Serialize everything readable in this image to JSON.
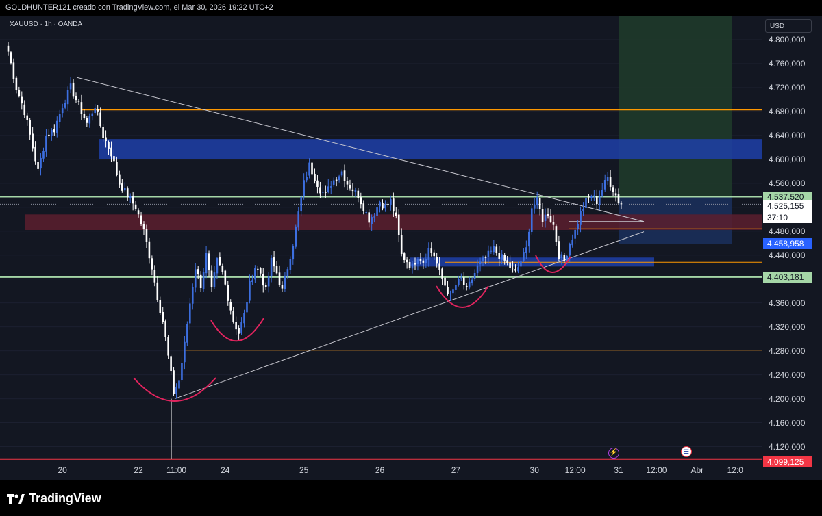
{
  "header": {
    "caption": "GOLDHUNTER121 creado con TradingView.com, el Mar 30, 2026 19:22 UTC+2"
  },
  "symbol_line": "XAUUSD · 1h · OANDA",
  "currency_button": "USD",
  "brand": {
    "name": "TradingView"
  },
  "events": {
    "lightning_icon": "lightning-icon",
    "flag_icon": "us-flag-icon"
  },
  "colors": {
    "background": "#131722",
    "up_candle": "#3d6fe0",
    "down_candle": "#ffffff",
    "orange_line": "#ff9800",
    "green_line": "#a5d6a7",
    "red_line": "#f23645",
    "blue_zone": "#1e40a8",
    "red_zone": "#5c1f2e",
    "target_zone": "#1f3a2a"
  },
  "price_labels": {
    "current": {
      "text": "4.525,155",
      "countdown": "37:10"
    },
    "upper_green": "4.537,520",
    "blue": "4.458,958",
    "lower_green": "4.403,181",
    "bottom_red": "4.099,125"
  },
  "chart_data": {
    "type": "candlestick",
    "title": "XAUUSD · 1h · OANDA",
    "ylim": [
      4099,
      4812
    ],
    "y_ticks": [
      "4.800,000",
      "4.760,000",
      "4.720,000",
      "4.680,000",
      "4.640,000",
      "4.600,000",
      "4.560,000",
      "4.520,000",
      "4.480,000",
      "4.440,000",
      "4.400,000",
      "4.360,000",
      "4.320,000",
      "4.280,000",
      "4.240,000",
      "4.200,000",
      "4.160,000",
      "4.120,000"
    ],
    "y_tick_values": [
      4800,
      4760,
      4720,
      4680,
      4640,
      4600,
      4560,
      4520,
      4480,
      4440,
      4400,
      4360,
      4320,
      4280,
      4240,
      4200,
      4160,
      4120
    ],
    "x_ticks": [
      "20",
      "22",
      "11:00",
      "24",
      "25",
      "26",
      "27",
      "30",
      "12:00",
      "31",
      "12:00",
      "Abr",
      "12:0"
    ],
    "x_tick_index": [
      20,
      48,
      62,
      80,
      109,
      137,
      165,
      194,
      209,
      225,
      239,
      254,
      268
    ],
    "anchors": [
      [
        0,
        4780
      ],
      [
        3,
        4720
      ],
      [
        6,
        4680
      ],
      [
        9,
        4620
      ],
      [
        11,
        4580
      ],
      [
        14,
        4640
      ],
      [
        17,
        4650
      ],
      [
        20,
        4690
      ],
      [
        23,
        4720
      ],
      [
        26,
        4690
      ],
      [
        29,
        4660
      ],
      [
        32,
        4690
      ],
      [
        35,
        4640
      ],
      [
        38,
        4610
      ],
      [
        41,
        4560
      ],
      [
        44,
        4540
      ],
      [
        47,
        4520
      ],
      [
        50,
        4480
      ],
      [
        53,
        4420
      ],
      [
        55,
        4370
      ],
      [
        57,
        4330
      ],
      [
        59,
        4270
      ],
      [
        61,
        4210
      ],
      [
        63,
        4230
      ],
      [
        65,
        4290
      ],
      [
        67,
        4360
      ],
      [
        69,
        4420
      ],
      [
        71,
        4390
      ],
      [
        73,
        4440
      ],
      [
        75,
        4380
      ],
      [
        77,
        4430
      ],
      [
        79,
        4410
      ],
      [
        81,
        4370
      ],
      [
        83,
        4330
      ],
      [
        85,
        4310
      ],
      [
        87,
        4340
      ],
      [
        89,
        4390
      ],
      [
        91,
        4420
      ],
      [
        93,
        4410
      ],
      [
        95,
        4380
      ],
      [
        97,
        4430
      ],
      [
        99,
        4410
      ],
      [
        101,
        4380
      ],
      [
        103,
        4420
      ],
      [
        105,
        4460
      ],
      [
        107,
        4510
      ],
      [
        109,
        4560
      ],
      [
        111,
        4590
      ],
      [
        113,
        4570
      ],
      [
        115,
        4550
      ],
      [
        117,
        4540
      ],
      [
        119,
        4560
      ],
      [
        121,
        4570
      ],
      [
        123,
        4580
      ],
      [
        125,
        4560
      ],
      [
        127,
        4550
      ],
      [
        129,
        4540
      ],
      [
        131,
        4520
      ],
      [
        133,
        4500
      ],
      [
        135,
        4510
      ],
      [
        137,
        4530
      ],
      [
        139,
        4520
      ],
      [
        141,
        4530
      ],
      [
        143,
        4500
      ],
      [
        145,
        4440
      ],
      [
        147,
        4430
      ],
      [
        149,
        4420
      ],
      [
        151,
        4440
      ],
      [
        153,
        4430
      ],
      [
        155,
        4450
      ],
      [
        157,
        4440
      ],
      [
        159,
        4410
      ],
      [
        161,
        4390
      ],
      [
        163,
        4370
      ],
      [
        165,
        4390
      ],
      [
        167,
        4400
      ],
      [
        169,
        4380
      ],
      [
        171,
        4400
      ],
      [
        173,
        4420
      ],
      [
        175,
        4430
      ],
      [
        177,
        4440
      ],
      [
        179,
        4450
      ],
      [
        181,
        4440
      ],
      [
        183,
        4430
      ],
      [
        185,
        4420
      ],
      [
        187,
        4410
      ],
      [
        189,
        4430
      ],
      [
        191,
        4450
      ],
      [
        193,
        4520
      ],
      [
        195,
        4530
      ],
      [
        197,
        4500
      ],
      [
        199,
        4510
      ],
      [
        201,
        4490
      ],
      [
        203,
        4440
      ],
      [
        205,
        4430
      ],
      [
        207,
        4460
      ],
      [
        209,
        4480
      ],
      [
        211,
        4510
      ],
      [
        213,
        4530
      ],
      [
        215,
        4540
      ],
      [
        217,
        4530
      ],
      [
        219,
        4550
      ],
      [
        221,
        4570
      ],
      [
        223,
        4550
      ],
      [
        225,
        4530
      ],
      [
        226,
        4525
      ]
    ]
  }
}
